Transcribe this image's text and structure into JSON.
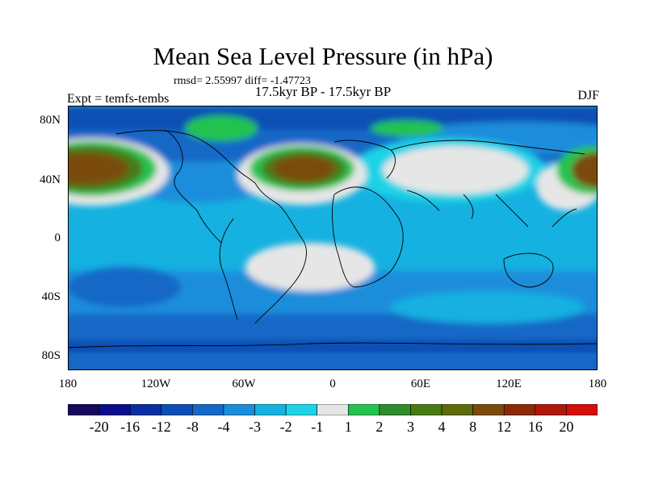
{
  "title": "Mean Sea Level Pressure (in hPa)",
  "stats": "rmsd= 2.55997 diff= -1.47723",
  "experiment_label": "Expt = temfs-tembs",
  "period_label": "17.5kyr BP - 17.5kyr BP",
  "season_label": "DJF",
  "lat_labels": [
    "80N",
    "40N",
    "0",
    "40S",
    "80S"
  ],
  "lon_labels": [
    "180",
    "120W",
    "60W",
    "0",
    "60E",
    "120E",
    "180"
  ],
  "colorbar": {
    "colors": [
      "#1a0a5e",
      "#0b0e8c",
      "#0a2fa3",
      "#0b4fb5",
      "#1668c7",
      "#1b8ddb",
      "#15b1e0",
      "#1fd3e6",
      "#e6e6e6",
      "#24c24f",
      "#2f8c2c",
      "#4a7a12",
      "#5f6a0c",
      "#7a4b0a",
      "#8a2a07",
      "#b0180a",
      "#d40f0a"
    ],
    "labels": [
      "-20",
      "-16",
      "-12",
      "-8",
      "-4",
      "-3",
      "-2",
      "-1",
      "1",
      "2",
      "3",
      "4",
      "8",
      "12",
      "16",
      "20"
    ]
  }
}
